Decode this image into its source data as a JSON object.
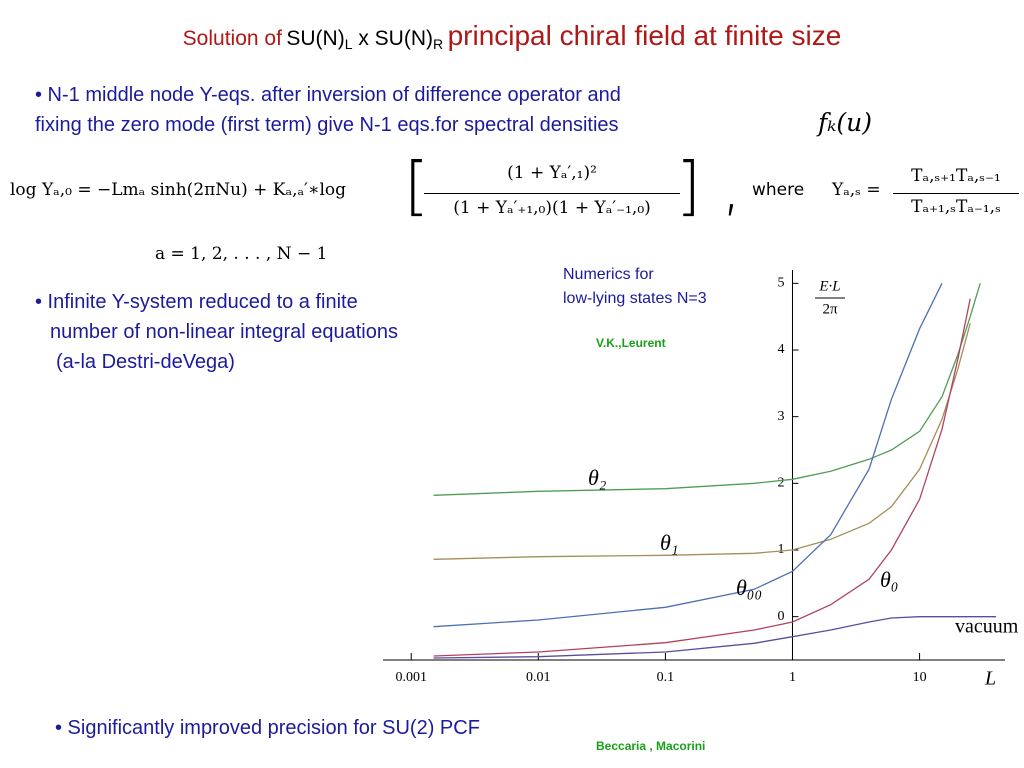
{
  "header": {
    "title_parts": [
      "Solution of",
      "SU(N)",
      "L",
      " x SU(N)",
      "R",
      "principal chiral field at finite size"
    ]
  },
  "bullets": [
    {
      "lines": [
        "•  N-1 middle node  Y-eqs. after inversion of difference operator  and",
        "fixing the zero mode (first term) give N-1 eqs.for spectral densities"
      ]
    },
    {
      "lines": [
        "• Infinite Y-system  reduced to a finite",
        "number of non-linear integral equations",
        "(a-la  Destri-deVega)"
      ]
    },
    {
      "lines": [
        "•  Significantly improved precision for SU(2) PCF"
      ]
    }
  ],
  "spectral_density": "fₖ(u)",
  "equation": {
    "lhs": "log Yₐ,₀ = −Lmₐ sinh(2πNu) + Kₐ,ₐ′∗log",
    "bracket_open": "[",
    "numerator": "(1 + Yₐ′,₁)²",
    "denominator": "(1 + Yₐ′₊₁,₀)(1 + Yₐ′₋₁,₀)",
    "bracket_close": "] ,",
    "where": "where",
    "y_def": "Yₐ,ₛ =",
    "y_numerator": "Tₐ,ₛ₊₁Tₐ,ₛ₋₁",
    "y_denominator": "Tₐ₊₁,ₛTₐ₋₁,ₛ",
    "range": "a = 1, 2, . . . , N − 1"
  },
  "notes": {
    "numerics": [
      "Numerics for",
      "low-lying states N=3"
    ],
    "credit_top": "V.K.,Leurent",
    "credit_bottom": "Beccaria , Macorini"
  },
  "chart_data": {
    "type": "line",
    "xlabel": "L",
    "ylabel": {
      "numerator": "E·L",
      "denominator": "2π"
    },
    "log_x": true,
    "yaxis_position": 1,
    "x": [
      0.0015,
      0.01,
      0.1,
      0.5,
      1,
      2,
      4,
      6,
      10,
      15,
      20,
      25,
      30,
      40
    ],
    "xlim": [
      0.0006,
      47
    ],
    "xticks": [
      0.001,
      0.01,
      0.1,
      1,
      10
    ],
    "ylim": [
      -0.65,
      5.2
    ],
    "yticks": [
      0,
      1,
      2,
      3,
      4,
      5
    ],
    "series": [
      {
        "name": "θ₂",
        "color": "#4f9d55",
        "values": [
          1.82,
          1.88,
          1.92,
          2.0,
          2.06,
          2.18,
          2.36,
          2.5,
          2.78,
          3.3,
          3.93,
          4.5,
          5.0,
          null
        ]
      },
      {
        "name": "θ₁",
        "color": "#a38f58",
        "values": [
          0.86,
          0.9,
          0.92,
          0.95,
          1.0,
          1.16,
          1.4,
          1.65,
          2.21,
          2.96,
          3.71,
          4.4,
          null,
          null
        ]
      },
      {
        "name": "θ₀₀",
        "color": "#4e70b3",
        "values": [
          -0.15,
          -0.05,
          0.14,
          0.41,
          0.68,
          1.23,
          2.21,
          3.26,
          4.32,
          5.0,
          null,
          null,
          null,
          null
        ]
      },
      {
        "name": "θ₀",
        "color": "#b2435f",
        "values": [
          -0.59,
          -0.53,
          -0.39,
          -0.2,
          -0.08,
          0.18,
          0.56,
          1.0,
          1.76,
          2.81,
          3.86,
          4.77,
          null,
          null
        ]
      },
      {
        "name": "vacuum",
        "color": "#5c4c9f",
        "values": [
          -0.62,
          -0.6,
          -0.53,
          -0.4,
          -0.3,
          -0.2,
          -0.08,
          -0.02,
          0,
          0,
          0,
          0,
          0,
          0
        ]
      }
    ]
  }
}
